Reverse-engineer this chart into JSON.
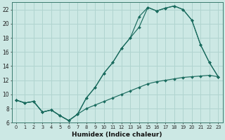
{
  "xlabel": "Humidex (Indice chaleur)",
  "background_color": "#cce8e4",
  "grid_color": "#b0d4cf",
  "line_color": "#1a6b5e",
  "xlim": [
    -0.5,
    23.5
  ],
  "ylim": [
    6,
    23
  ],
  "xticks": [
    0,
    1,
    2,
    3,
    4,
    5,
    6,
    7,
    8,
    9,
    10,
    11,
    12,
    13,
    14,
    15,
    16,
    17,
    18,
    19,
    20,
    21,
    22,
    23
  ],
  "yticks": [
    6,
    8,
    10,
    12,
    14,
    16,
    18,
    20,
    22
  ],
  "line1_x": [
    0,
    1,
    2,
    3,
    4,
    5,
    6,
    7,
    8,
    9,
    10,
    11,
    12,
    13,
    14,
    15,
    16,
    17,
    18,
    19,
    20,
    21,
    22,
    23
  ],
  "line1_y": [
    9.2,
    8.8,
    9.0,
    7.5,
    7.8,
    7.0,
    6.3,
    7.2,
    9.5,
    11.0,
    13.0,
    14.5,
    16.5,
    18.0,
    19.5,
    22.3,
    21.8,
    22.2,
    22.5,
    22.0,
    20.5,
    17.0,
    14.5,
    12.5
  ],
  "line2_x": [
    0,
    1,
    2,
    3,
    4,
    5,
    6,
    7,
    8,
    9,
    10,
    11,
    12,
    13,
    14,
    15,
    16,
    17,
    18,
    19,
    20,
    21,
    22,
    23
  ],
  "line2_y": [
    9.2,
    8.8,
    9.0,
    7.5,
    7.8,
    7.0,
    6.3,
    7.2,
    9.5,
    11.0,
    13.0,
    14.5,
    16.5,
    18.0,
    21.0,
    22.3,
    21.8,
    22.2,
    22.5,
    22.0,
    20.5,
    17.0,
    14.5,
    12.5
  ],
  "line3_x": [
    0,
    1,
    2,
    3,
    4,
    5,
    6,
    7,
    8,
    9,
    10,
    11,
    12,
    13,
    14,
    15,
    16,
    17,
    18,
    19,
    20,
    21,
    22,
    23
  ],
  "line3_y": [
    9.2,
    8.8,
    9.0,
    7.5,
    7.8,
    7.0,
    6.3,
    7.2,
    8.0,
    8.5,
    9.0,
    9.5,
    10.0,
    10.5,
    11.0,
    11.5,
    11.8,
    12.0,
    12.2,
    12.4,
    12.5,
    12.6,
    12.7,
    12.5
  ]
}
